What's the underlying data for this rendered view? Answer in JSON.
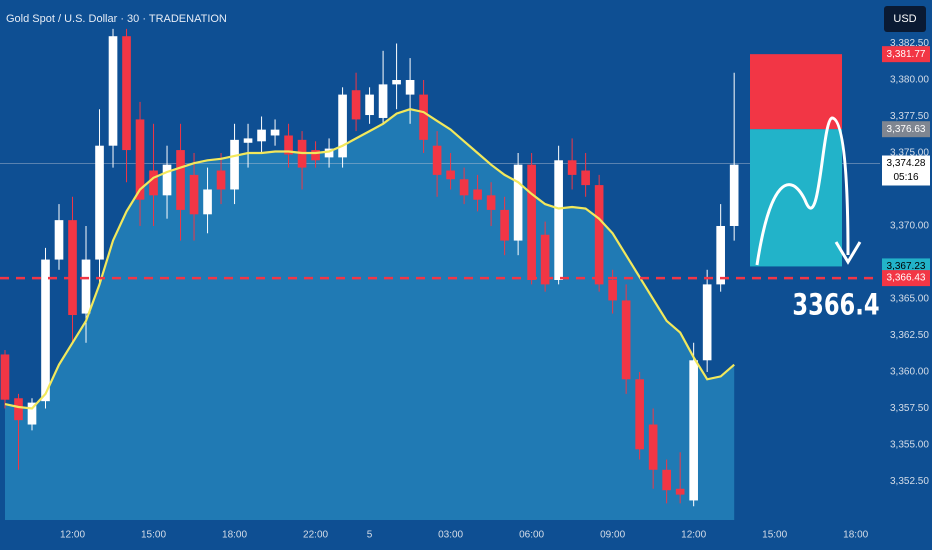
{
  "chart_data": {
    "type": "candlestick",
    "title": "Gold Spot / U.S. Dollar · 30 · TRADENATION",
    "currency": "USD",
    "up_color": "#ffffff",
    "down_color": "#f23645",
    "open": [
      3361.2,
      3358.2,
      3356.4,
      3358,
      3367.7,
      3370.4,
      3364,
      3367.7,
      3375.5,
      3383,
      3377.3,
      3373.8,
      3372.1,
      3375.2,
      3373.5,
      3370.8,
      3373.8,
      3372.5,
      3375.7,
      3375.8,
      3376.2,
      3376.2,
      3375.9,
      3375.2,
      3374.7,
      3374.7,
      3379.3,
      3377.6,
      3377.4,
      3379.7,
      3379,
      3379,
      3375.5,
      3373.8,
      3373.2,
      3372.5,
      3372.1,
      3371.1,
      3369,
      3374.2,
      3369.4,
      3366.3,
      3374.5,
      3373.8,
      3372.8,
      3366.3,
      3364.9,
      3359.5,
      3356.4,
      3353.3,
      3352,
      3351.2,
      3360.8,
      3366,
      3370
    ],
    "high": [
      3361.5,
      3358.5,
      3358.2,
      3368.5,
      3371.5,
      3372,
      3370,
      3378,
      3383.5,
      3383.5,
      3378.5,
      3377,
      3375.5,
      3377,
      3375,
      3374,
      3375,
      3377,
      3377,
      3377.5,
      3377.3,
      3377,
      3376.5,
      3375.8,
      3376,
      3379.5,
      3380.5,
      3379.5,
      3382,
      3382.5,
      3381.5,
      3380,
      3376.5,
      3375,
      3374,
      3373.5,
      3373,
      3372,
      3375,
      3375,
      3370.3,
      3375.5,
      3376,
      3375,
      3373.5,
      3367,
      3366,
      3360,
      3357.5,
      3354,
      3354.5,
      3362,
      3367,
      3371.5,
      3380.5
    ],
    "low": [
      3357.5,
      3353.3,
      3356,
      3357.5,
      3367,
      3362,
      3362,
      3366,
      3374,
      3373,
      3370,
      3370,
      3370.5,
      3369,
      3369,
      3369.5,
      3371.5,
      3371.5,
      3374,
      3375,
      3375.5,
      3374,
      3372.5,
      3374,
      3374,
      3374,
      3376.5,
      3377,
      3377,
      3378,
      3377,
      3375,
      3372,
      3372.5,
      3371.5,
      3371,
      3370,
      3368,
      3368,
      3366,
      3365.5,
      3366,
      3372.5,
      3372,
      3365.5,
      3364,
      3358.5,
      3354,
      3352,
      3351,
      3351,
      3350.8,
      3360,
      3365.5,
      3369
    ],
    "close": [
      3358.1,
      3356.7,
      3357.9,
      3367.7,
      3370.4,
      3363.9,
      3367.7,
      3375.5,
      3383,
      3375.2,
      3371.8,
      3372.1,
      3374.2,
      3371.1,
      3370.8,
      3372.5,
      3372.5,
      3375.9,
      3376,
      3376.6,
      3376.6,
      3374.9,
      3374,
      3374.5,
      3375.3,
      3379,
      3377.3,
      3379,
      3379.7,
      3380,
      3380,
      3375.9,
      3373.5,
      3373.2,
      3372.1,
      3371.8,
      3371.1,
      3369,
      3374.2,
      3366.3,
      3366,
      3374.5,
      3373.5,
      3372.8,
      3366,
      3364.9,
      3359.5,
      3354.7,
      3353.3,
      3351.9,
      3351.6,
      3360.8,
      3366,
      3370,
      3374.2
    ],
    "moving_average": {
      "color": "#f2e85c",
      "values": [
        3357.8,
        3357.6,
        3357.5,
        3358.5,
        3360.5,
        3362,
        3363.5,
        3366,
        3369,
        3371,
        3372.5,
        3373.3,
        3373.7,
        3374,
        3374.3,
        3374.5,
        3374.6,
        3374.8,
        3375,
        3375,
        3375.1,
        3375.1,
        3375,
        3375,
        3375.1,
        3375.5,
        3376,
        3376.5,
        3377,
        3377.7,
        3378,
        3377.8,
        3377.2,
        3376.6,
        3375.8,
        3375,
        3374.2,
        3373.5,
        3373,
        3372.2,
        3371.5,
        3371.2,
        3371.3,
        3371.2,
        3370.5,
        3369.5,
        3368,
        3366.5,
        3365,
        3363.5,
        3362.7,
        3361,
        3359.5,
        3359.7,
        3360.5
      ]
    },
    "xlim": [
      -0.37,
      64.8
    ],
    "xticks": [
      {
        "value": 5,
        "label": "12:00"
      },
      {
        "value": 11,
        "label": "15:00"
      },
      {
        "value": 17,
        "label": "18:00"
      },
      {
        "value": 23,
        "label": "22:00"
      },
      {
        "value": 27,
        "label": "5"
      },
      {
        "value": 33,
        "label": "03:00"
      },
      {
        "value": 39,
        "label": "06:00"
      },
      {
        "value": 45,
        "label": "09:00"
      },
      {
        "value": 51,
        "label": "12:00"
      },
      {
        "value": 57,
        "label": "15:00"
      },
      {
        "value": 63,
        "label": "18:00"
      }
    ],
    "ylim": [
      3349.86,
      3385.48
    ],
    "yticks": [
      {
        "value": 3352.5,
        "label": "3,352.50"
      },
      {
        "value": 3355,
        "label": "3,355.00"
      },
      {
        "value": 3357.5,
        "label": "3,357.50"
      },
      {
        "value": 3360,
        "label": "3,360.00"
      },
      {
        "value": 3362.5,
        "label": "3,362.50"
      },
      {
        "value": 3365,
        "label": "3,365.00"
      },
      {
        "value": 3370,
        "label": "3,370.00"
      },
      {
        "value": 3375,
        "label": "3,375.00"
      },
      {
        "value": 3377.5,
        "label": "3,377.50"
      },
      {
        "value": 3380,
        "label": "3,380.00"
      },
      {
        "value": 3382.5,
        "label": "3,382.50"
      }
    ],
    "position": {
      "stop": {
        "value": 3381.77,
        "label": "3,381.77",
        "color": "#f23645"
      },
      "entry": {
        "value": 3376.63,
        "label": "3,376.63",
        "color": "#7f8691"
      },
      "target": {
        "value": 3367.23,
        "label": "3,367.23",
        "color": "#22b3c9"
      }
    },
    "last_price": {
      "value": 3374.28,
      "label": "3,374.28",
      "countdown": "05:16"
    },
    "support": {
      "value": 3366.43,
      "label": "3,366.43",
      "color": "#f23645"
    },
    "annotation": "3366.4"
  }
}
